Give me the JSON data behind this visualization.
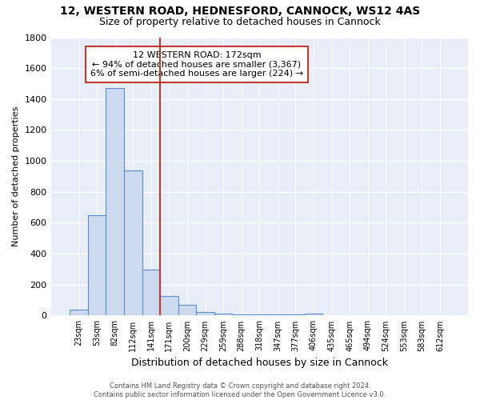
{
  "title1": "12, WESTERN ROAD, HEDNESFORD, CANNOCK, WS12 4AS",
  "title2": "Size of property relative to detached houses in Cannock",
  "xlabel": "Distribution of detached houses by size in Cannock",
  "ylabel": "Number of detached properties",
  "categories": [
    "23sqm",
    "53sqm",
    "82sqm",
    "112sqm",
    "141sqm",
    "171sqm",
    "200sqm",
    "229sqm",
    "259sqm",
    "288sqm",
    "318sqm",
    "347sqm",
    "377sqm",
    "406sqm",
    "435sqm",
    "465sqm",
    "494sqm",
    "524sqm",
    "553sqm",
    "583sqm",
    "612sqm"
  ],
  "values": [
    40,
    650,
    1470,
    940,
    295,
    125,
    70,
    25,
    10,
    8,
    5,
    5,
    5,
    15,
    0,
    0,
    0,
    0,
    0,
    0,
    0
  ],
  "bar_color": "#ccd9ee",
  "bar_edge_color": "#5b8fc9",
  "vline_color": "#c0392b",
  "annotation_line1": "12 WESTERN ROAD: 172sqm",
  "annotation_line2": "← 94% of detached houses are smaller (3,367)",
  "annotation_line3": "6% of semi-detached houses are larger (224) →",
  "annotation_box_color": "#ffffff",
  "annotation_box_edge": "#c0392b",
  "ylim": [
    0,
    1800
  ],
  "yticks": [
    0,
    200,
    400,
    600,
    800,
    1000,
    1200,
    1400,
    1600,
    1800
  ],
  "background_color": "#e8eef8",
  "grid_color": "#ffffff",
  "fig_bg": "#ffffff",
  "footer1": "Contains HM Land Registry data © Crown copyright and database right 2024.",
  "footer2": "Contains public sector information licensed under the Open Government Licence v3.0."
}
